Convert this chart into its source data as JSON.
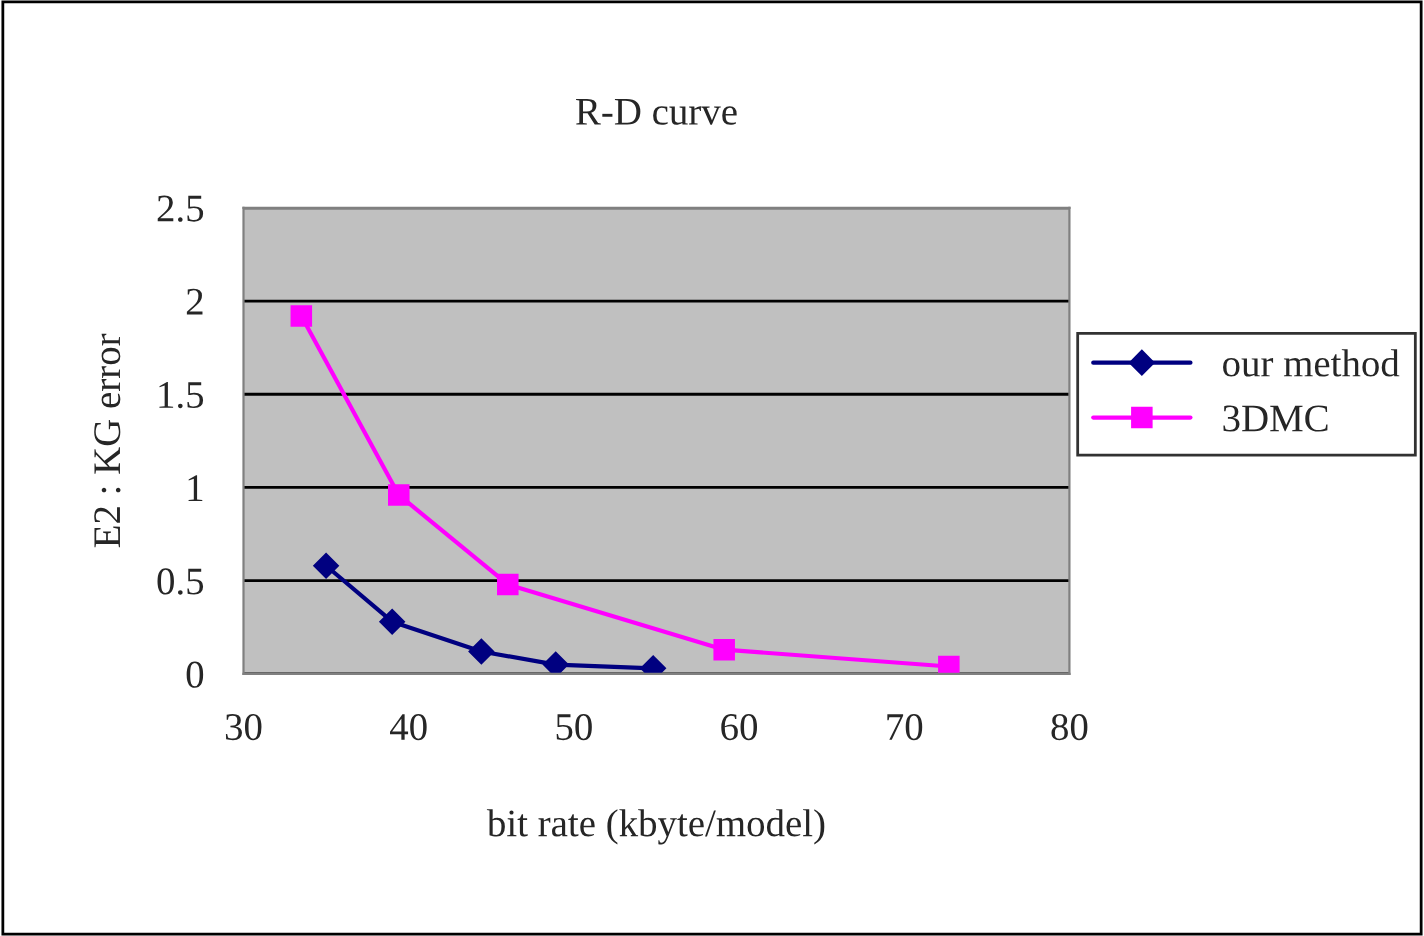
{
  "chart_data": {
    "type": "line",
    "title": "R-D curve",
    "xlabel": "bit rate (kbyte/model)",
    "ylabel": "E2 : KG error",
    "xlim": [
      30,
      80
    ],
    "xticks": [
      30,
      40,
      50,
      60,
      70,
      80
    ],
    "ylim": [
      0,
      2.5
    ],
    "yticks": [
      0,
      0.5,
      1,
      1.5,
      2,
      2.5
    ],
    "grid": "y",
    "legend": "right",
    "line_style": "solid",
    "series": [
      {
        "name": "our method",
        "color": "#000080",
        "marker": "diamond",
        "x": [
          35.0,
          39.0,
          44.4,
          48.9,
          54.8
        ],
        "values": [
          0.58,
          0.28,
          0.12,
          0.05,
          0.03
        ]
      },
      {
        "name": "3DMC",
        "color": "#ff00ff",
        "marker": "square",
        "x": [
          33.5,
          39.4,
          46.0,
          59.1,
          72.7
        ],
        "values": [
          1.92,
          0.96,
          0.48,
          0.13,
          0.04
        ]
      }
    ]
  }
}
